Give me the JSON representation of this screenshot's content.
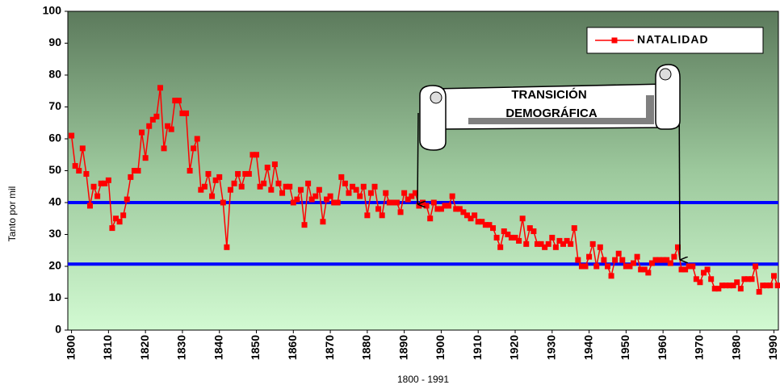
{
  "chart_data": {
    "type": "line",
    "y_label": "Tanto por mil",
    "x_label": "1800 - 1991",
    "annotation": [
      "TRANSICIÓN",
      "DEMOGRÁFICA"
    ],
    "legend": "upper right",
    "reference_lines": [
      40,
      20.7
    ],
    "reference_color": "#0000ff",
    "xlim": [
      1799,
      1991.2
    ],
    "xticks": [
      1800,
      1810,
      1820,
      1830,
      1840,
      1850,
      1860,
      1870,
      1880,
      1890,
      1900,
      1910,
      1920,
      1930,
      1940,
      1950,
      1960,
      1970,
      1980,
      1990
    ],
    "ylim": [
      0,
      100
    ],
    "yticks": [
      0,
      10,
      20,
      30,
      40,
      50,
      60,
      70,
      80,
      90,
      100
    ],
    "x": [
      1800,
      1801,
      1802,
      1803,
      1804,
      1805,
      1806,
      1807,
      1808,
      1809,
      1810,
      1811,
      1812,
      1813,
      1814,
      1815,
      1816,
      1817,
      1818,
      1819,
      1820,
      1821,
      1822,
      1823,
      1824,
      1825,
      1826,
      1827,
      1828,
      1829,
      1830,
      1831,
      1832,
      1833,
      1834,
      1835,
      1836,
      1837,
      1838,
      1839,
      1840,
      1841,
      1842,
      1843,
      1844,
      1845,
      1846,
      1847,
      1848,
      1849,
      1850,
      1851,
      1852,
      1853,
      1854,
      1855,
      1856,
      1857,
      1858,
      1859,
      1860,
      1861,
      1862,
      1863,
      1864,
      1865,
      1866,
      1867,
      1868,
      1869,
      1870,
      1871,
      1872,
      1873,
      1874,
      1875,
      1876,
      1877,
      1878,
      1879,
      1880,
      1881,
      1882,
      1883,
      1884,
      1885,
      1886,
      1887,
      1888,
      1889,
      1890,
      1891,
      1892,
      1893,
      1894,
      1895,
      1896,
      1897,
      1898,
      1899,
      1900,
      1901,
      1902,
      1903,
      1904,
      1905,
      1906,
      1907,
      1908,
      1909,
      1910,
      1911,
      1912,
      1913,
      1914,
      1915,
      1916,
      1917,
      1918,
      1919,
      1920,
      1921,
      1922,
      1923,
      1924,
      1925,
      1926,
      1927,
      1928,
      1929,
      1930,
      1931,
      1932,
      1933,
      1934,
      1935,
      1936,
      1937,
      1938,
      1939,
      1940,
      1941,
      1942,
      1943,
      1944,
      1945,
      1946,
      1947,
      1948,
      1949,
      1950,
      1951,
      1952,
      1953,
      1954,
      1955,
      1956,
      1957,
      1958,
      1959,
      1960,
      1961,
      1962,
      1963,
      1964,
      1965,
      1966,
      1967,
      1968,
      1969,
      1970,
      1971,
      1972,
      1973,
      1974,
      1975,
      1976,
      1977,
      1978,
      1979,
      1980,
      1981,
      1982,
      1983,
      1984,
      1985,
      1986,
      1987,
      1988,
      1989,
      1990,
      1991
    ],
    "series": [
      {
        "name": "NATALIDAD",
        "color": "#ff0000",
        "values": [
          61,
          51.5,
          50,
          57,
          49,
          39,
          45,
          42,
          46,
          46,
          47,
          32,
          35,
          34,
          36,
          41,
          48,
          50,
          50,
          62,
          54,
          64,
          66,
          67,
          76,
          57,
          64,
          63,
          72,
          72,
          68,
          68,
          50,
          57,
          60,
          44,
          45,
          49,
          42,
          47,
          48,
          40,
          26,
          44,
          46,
          49,
          45,
          49,
          49,
          55,
          55,
          45,
          46,
          51,
          44,
          52,
          46,
          43,
          45,
          45,
          40,
          41,
          44,
          33,
          46,
          41,
          42,
          44,
          34,
          41,
          42,
          40,
          40,
          48,
          46,
          43,
          45,
          44,
          42,
          45,
          36,
          43,
          45,
          38,
          36,
          43,
          40,
          40,
          40,
          37,
          43,
          41,
          42,
          43,
          39,
          40,
          39,
          35,
          40,
          38,
          38,
          39,
          39,
          42,
          38,
          38,
          37,
          36,
          35,
          36,
          34,
          34,
          33,
          33,
          32,
          29,
          26,
          31,
          30,
          29,
          29,
          28,
          35,
          27,
          32,
          31,
          27,
          27,
          26,
          27,
          29,
          26,
          28,
          27,
          28,
          27,
          32,
          22,
          20,
          20,
          23,
          27,
          20,
          26,
          22,
          20,
          17,
          22,
          24,
          22,
          20,
          20,
          21,
          23,
          19,
          19,
          18,
          21,
          22,
          22,
          22,
          22,
          21,
          23,
          26,
          19,
          19,
          20,
          20,
          16,
          15,
          18,
          19,
          16,
          13,
          13,
          14,
          14,
          14,
          14,
          15,
          13,
          16,
          16,
          16,
          20,
          12,
          14,
          14,
          14,
          17,
          14
        ]
      }
    ]
  }
}
